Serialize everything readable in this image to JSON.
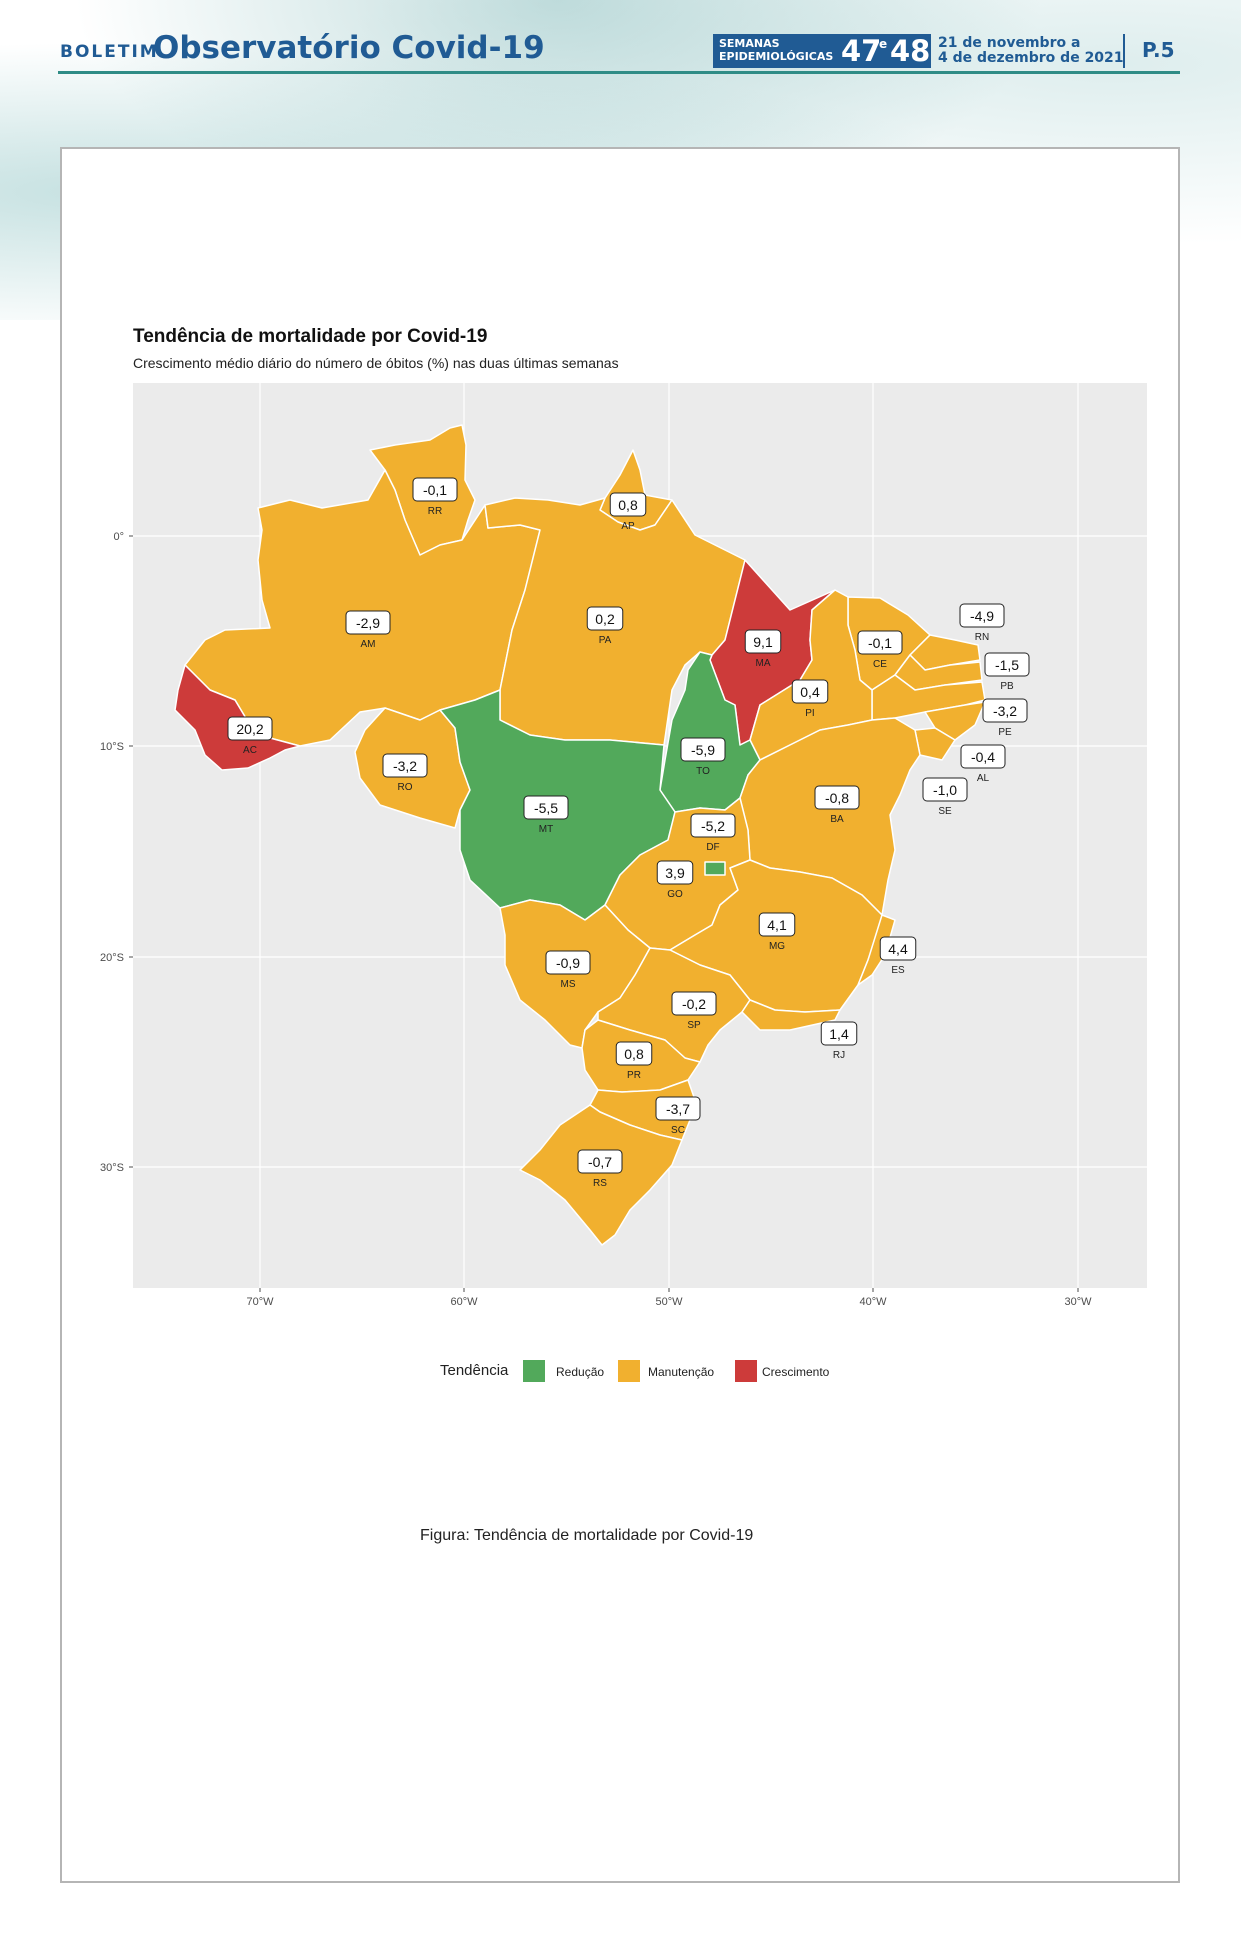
{
  "header": {
    "boletim": "BOLETIM",
    "title": "Observatório Covid-19",
    "weeks_label_1": "SEMANAS",
    "weeks_label_2": "EPIDEMIOLÓGICAS",
    "week_a": "47",
    "week_conj": "e",
    "week_b": "48",
    "date_line_1": "21 de novembro a",
    "date_line_2": "4 de dezembro de 2021",
    "page": "P.5",
    "colors": {
      "primary": "#205b94",
      "accent": "#2f8c86"
    }
  },
  "figure": {
    "title": "Tendência de mortalidade por Covid-19",
    "subtitle": "Crescimento médio diário do número de óbitos (%) nas duas últimas semanas",
    "caption": "Figura: Tendência de mortalidade por Covid-19"
  },
  "axes": {
    "x_ticks": [
      "70°W",
      "60°W",
      "50°W",
      "40°W",
      "30°W"
    ],
    "y_ticks": [
      "0°",
      "10°S",
      "20°S",
      "30°S"
    ]
  },
  "legend": {
    "title": "Tendência",
    "items": [
      {
        "key": "reducao",
        "label": "Redução",
        "color": "#52a95b"
      },
      {
        "key": "manutencao",
        "label": "Manutenção",
        "color": "#f1b02f"
      },
      {
        "key": "crescimento",
        "label": "Crescimento",
        "color": "#cd3b3a"
      }
    ]
  },
  "states": [
    {
      "uf": "RR",
      "value": "-0,1",
      "category": "manutencao"
    },
    {
      "uf": "AP",
      "value": "0,8",
      "category": "manutencao"
    },
    {
      "uf": "AM",
      "value": "-2,9",
      "category": "manutencao"
    },
    {
      "uf": "PA",
      "value": "0,2",
      "category": "manutencao"
    },
    {
      "uf": "MA",
      "value": "9,1",
      "category": "crescimento"
    },
    {
      "uf": "CE",
      "value": "-0,1",
      "category": "manutencao"
    },
    {
      "uf": "RN",
      "value": "-4,9",
      "category": "manutencao"
    },
    {
      "uf": "PB",
      "value": "-1,5",
      "category": "manutencao"
    },
    {
      "uf": "PE",
      "value": "-3,2",
      "category": "manutencao"
    },
    {
      "uf": "PI",
      "value": "0,4",
      "category": "manutencao"
    },
    {
      "uf": "AL",
      "value": "-0,4",
      "category": "manutencao"
    },
    {
      "uf": "SE",
      "value": "-1,0",
      "category": "manutencao"
    },
    {
      "uf": "AC",
      "value": "20,2",
      "category": "crescimento"
    },
    {
      "uf": "RO",
      "value": "-3,2",
      "category": "manutencao"
    },
    {
      "uf": "TO",
      "value": "-5,9",
      "category": "reducao"
    },
    {
      "uf": "MT",
      "value": "-5,5",
      "category": "reducao"
    },
    {
      "uf": "BA",
      "value": "-0,8",
      "category": "manutencao"
    },
    {
      "uf": "DF",
      "value": "-5,2",
      "category": "reducao"
    },
    {
      "uf": "GO",
      "value": "3,9",
      "category": "manutencao"
    },
    {
      "uf": "MG",
      "value": "4,1",
      "category": "manutencao"
    },
    {
      "uf": "ES",
      "value": "4,4",
      "category": "manutencao"
    },
    {
      "uf": "MS",
      "value": "-0,9",
      "category": "manutencao"
    },
    {
      "uf": "SP",
      "value": "-0,2",
      "category": "manutencao"
    },
    {
      "uf": "RJ",
      "value": "1,4",
      "category": "manutencao"
    },
    {
      "uf": "PR",
      "value": "0,8",
      "category": "manutencao"
    },
    {
      "uf": "SC",
      "value": "-3,7",
      "category": "manutencao"
    },
    {
      "uf": "RS",
      "value": "-0,7",
      "category": "manutencao"
    }
  ]
}
